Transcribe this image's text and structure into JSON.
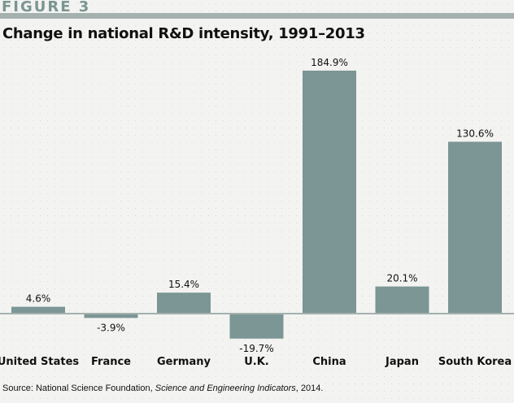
{
  "figure_label": "FIGURE 3",
  "source": {
    "prefix": "Source: National Science Foundation, ",
    "italic": "Science and Engineering Indicators",
    "suffix": ", 2014."
  },
  "colors": {
    "bar": "#7b9694",
    "baseline": "#a4b1ae",
    "accent": "#7a9592"
  },
  "chart_data": {
    "type": "bar",
    "title": "Change in national R&D intensity, 1991–2013",
    "xlabel": "",
    "ylabel": "",
    "categories": [
      "United States",
      "France",
      "Germany",
      "U.K.",
      "China",
      "Japan",
      "South Korea"
    ],
    "values": [
      4.6,
      -3.9,
      15.4,
      -19.7,
      184.9,
      20.1,
      130.6
    ],
    "data_labels": [
      "4.6%",
      "-3.9%",
      "15.4%",
      "-19.7%",
      "184.9%",
      "20.1%",
      "130.6%"
    ],
    "grid": false
  }
}
